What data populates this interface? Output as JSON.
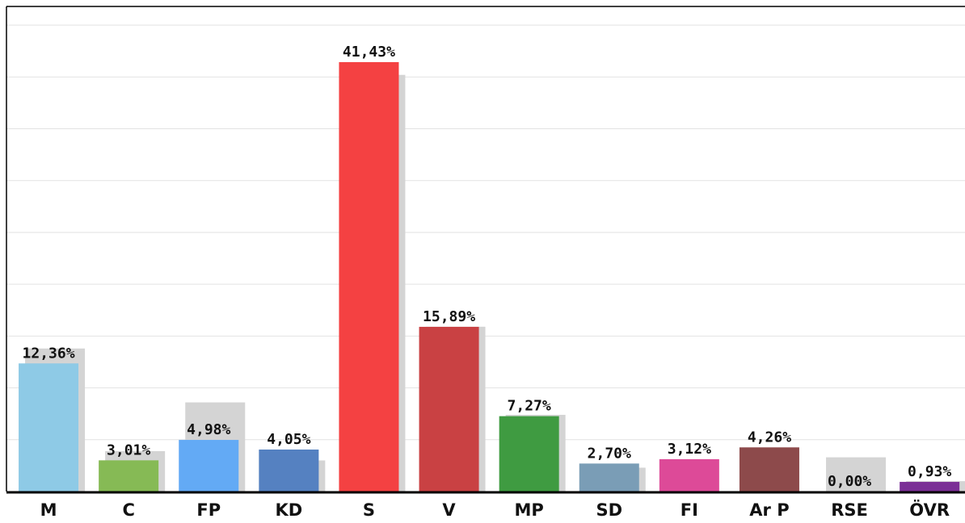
{
  "chart_data": {
    "type": "bar",
    "categories": [
      "M",
      "C",
      "FP",
      "KD",
      "S",
      "V",
      "MP",
      "SD",
      "FI",
      "Ar P",
      "RSE",
      "ÖVR"
    ],
    "values": [
      12.36,
      3.01,
      4.98,
      4.05,
      41.43,
      15.89,
      7.27,
      2.7,
      3.12,
      4.26,
      0.0,
      0.93
    ],
    "value_labels": [
      "12,36%",
      "3,01%",
      "4,98%",
      "4,05%",
      "41,43%",
      "15,89%",
      "7,27%",
      "2,70%",
      "3,12%",
      "4,26%",
      "0,00%",
      "0,93%"
    ],
    "colors": [
      "#8ecae6",
      "#86ba55",
      "#63aaf5",
      "#5581c1",
      "#f44142",
      "#c94143",
      "#3f9b41",
      "#7a9db6",
      "#dd4a98",
      "#8d4a4b",
      "#b0b0b0",
      "#7b2f96"
    ],
    "previous": {
      "color": "#d4d4d4",
      "values": [
        13.8,
        3.9,
        8.6,
        3.0,
        40.2,
        15.9,
        7.4,
        2.3,
        0,
        0,
        3.3,
        1.0
      ]
    },
    "ylim": [
      0,
      46.8
    ],
    "yticks": [
      0,
      5,
      10,
      15,
      20,
      25,
      30,
      35,
      40,
      45
    ],
    "grid": true
  }
}
